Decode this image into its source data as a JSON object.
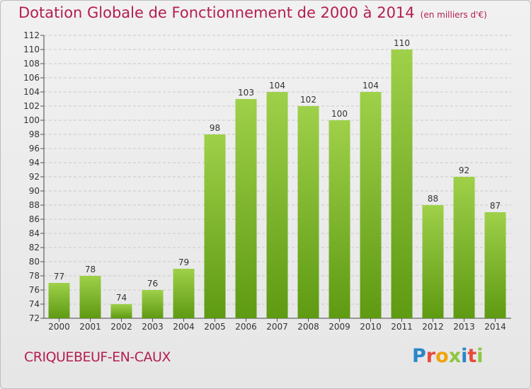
{
  "header": {
    "title": "Dotation Globale de Fonctionnement de 2000 à 2014",
    "unit": "(en milliers d'€)"
  },
  "footer": {
    "commune": "CRIQUEBEUF-EN-CAUX",
    "logo_text": "Proxiti",
    "logo_colors": [
      "#2a86c8",
      "#e84a3c",
      "#f0a30a",
      "#8cc63f",
      "#2a86c8",
      "#e84a3c",
      "#8cc63f"
    ]
  },
  "chart_data": {
    "type": "bar",
    "categories": [
      "2000",
      "2001",
      "2002",
      "2003",
      "2004",
      "2005",
      "2006",
      "2007",
      "2008",
      "2009",
      "2010",
      "2011",
      "2012",
      "2013",
      "2014"
    ],
    "values": [
      77,
      78,
      74,
      76,
      79,
      98,
      103,
      104,
      102,
      100,
      104,
      110,
      88,
      92,
      87
    ],
    "ylim": [
      72,
      112
    ],
    "yticks": [
      72,
      74,
      76,
      78,
      80,
      82,
      84,
      86,
      88,
      90,
      92,
      94,
      96,
      98,
      100,
      102,
      104,
      106,
      108,
      110,
      112
    ],
    "grid": true,
    "bar_colors": {
      "top": "#9fd04a",
      "bottom": "#5e9a12"
    }
  }
}
